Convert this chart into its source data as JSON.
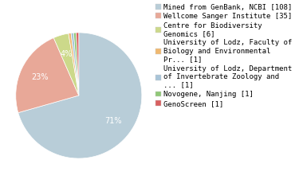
{
  "labels": [
    "Mined from GenBank, NCBI [108]",
    "Wellcome Sanger Institute [35]",
    "Centre for Biodiversity\nGenomics [6]",
    "University of Lodz, Faculty of\nBiology and Environmental\nPr... [1]",
    "University of Lodz, Department\nof Invertebrate Zoology and\n... [1]",
    "Novogene, Nanjing [1]",
    "GenoScreen [1]"
  ],
  "values": [
    108,
    35,
    6,
    1,
    1,
    1,
    1
  ],
  "colors": [
    "#b8cdd8",
    "#e8a898",
    "#ccd98a",
    "#f0b870",
    "#a8c4d8",
    "#90c878",
    "#d86060"
  ],
  "pct_distance": 0.68,
  "background_color": "#ffffff",
  "text_color": "#ffffff",
  "fontsize_pct": 7,
  "fontsize_legend": 6.5,
  "startangle": 90
}
